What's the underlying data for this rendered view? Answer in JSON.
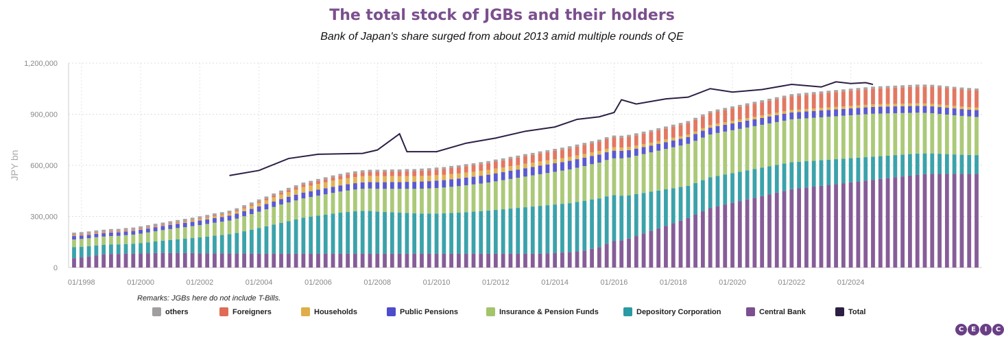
{
  "chart_data": {
    "type": "bar",
    "stacked": true,
    "title": "The total stock of JGBs and their holders",
    "subtitle": "Bank of Japan's share surged from about 2013 amid multiple rounds of QE",
    "ylabel": "JPY bn",
    "ylim": [
      0,
      1200000
    ],
    "yticks": [
      "0",
      "300,000",
      "600,000",
      "900,000",
      "1,200,000"
    ],
    "x_tick_labels": [
      "01/1998",
      "01/2000",
      "01/2002",
      "01/2004",
      "01/2006",
      "01/2008",
      "01/2010",
      "01/2012",
      "01/2014",
      "01/2016",
      "01/2018",
      "01/2020",
      "01/2022",
      "01/2024"
    ],
    "grid": true,
    "legend_position": "bottom",
    "period_start": "1997-Q4",
    "frequency": "quarterly",
    "series_colors": {
      "Central Bank": "#7c4f8f",
      "Depository Corporation": "#2a9aa3",
      "Insurance & Pension Funds": "#a4c46c",
      "Public Pensions": "#4c4ccc",
      "Households": "#dfae48",
      "Foreigners": "#e06c55",
      "others": "#a09e9e",
      "Total": "#2c1f44"
    },
    "series": [
      {
        "name": "Central Bank",
        "values": [
          55000,
          60000,
          65000,
          72000,
          78000,
          80000,
          80000,
          82000,
          82000,
          83000,
          84000,
          85000,
          86000,
          86000,
          86000,
          85000,
          85000,
          84000,
          84000,
          84000,
          83000,
          83000,
          83000,
          83000,
          82000,
          82000,
          82000,
          82000,
          82000,
          82000,
          82000,
          82000,
          82000,
          82000,
          82000,
          82000,
          82000,
          82000,
          82000,
          82000,
          82000,
          82000,
          82000,
          82000,
          82000,
          82000,
          82000,
          82000,
          82000,
          82000,
          82000,
          82000,
          82000,
          82000,
          82000,
          82000,
          82000,
          82000,
          82000,
          82000,
          82000,
          82000,
          82000,
          82000,
          84000,
          86000,
          88000,
          90000,
          95000,
          100000,
          110000,
          120000,
          140000,
          155000,
          160000,
          170000,
          185000,
          200000,
          215000,
          230000,
          245000,
          260000,
          275000,
          290000,
          310000,
          330000,
          350000,
          360000,
          370000,
          380000,
          390000,
          400000,
          410000,
          420000,
          430000,
          440000,
          450000,
          460000,
          465000,
          470000,
          475000,
          480000,
          485000,
          490000,
          495000,
          500000,
          505000,
          510000,
          515000,
          520000,
          525000,
          530000,
          535000,
          540000,
          545000,
          548000,
          550000,
          550000,
          550000,
          550000,
          550000,
          550000,
          550000
        ]
      },
      {
        "name": "Depository Corporation",
        "values": [
          65000,
          62000,
          60000,
          58000,
          55000,
          55000,
          55000,
          56000,
          57000,
          60000,
          64000,
          68000,
          72000,
          76000,
          80000,
          84000,
          88000,
          93000,
          98000,
          103000,
          108000,
          113000,
          120000,
          130000,
          140000,
          150000,
          160000,
          170000,
          180000,
          190000,
          200000,
          210000,
          216000,
          222000,
          228000,
          234000,
          240000,
          244000,
          248000,
          250000,
          250000,
          246000,
          244000,
          242000,
          240000,
          238000,
          236000,
          235000,
          235000,
          235000,
          236000,
          238000,
          240000,
          243000,
          246000,
          249000,
          252000,
          256000,
          260000,
          264000,
          268000,
          272000,
          276000,
          280000,
          282000,
          284000,
          286000,
          288000,
          290000,
          292000,
          290000,
          286000,
          278000,
          270000,
          262000,
          254000,
          246000,
          238000,
          230000,
          222000,
          214000,
          206000,
          198000,
          190000,
          186000,
          183000,
          180000,
          178000,
          176000,
          174000,
          172000,
          170000,
          168000,
          166000,
          164000,
          162000,
          160000,
          158000,
          156000,
          154000,
          152000,
          150000,
          148000,
          146000,
          144000,
          142000,
          140000,
          138000,
          136000,
          134000,
          132000,
          130000,
          128000,
          126000,
          124000,
          122000,
          120000,
          118000,
          116000,
          114000,
          112000,
          111000,
          110000
        ]
      },
      {
        "name": "Insurance & Pension Funds",
        "values": [
          45000,
          46000,
          47000,
          48000,
          49000,
          50000,
          51000,
          52000,
          54000,
          56000,
          58000,
          60000,
          62000,
          64000,
          66000,
          68000,
          70000,
          72000,
          74000,
          76000,
          78000,
          80000,
          84000,
          88000,
          92000,
          96000,
          100000,
          104000,
          108000,
          110000,
          112000,
          114000,
          116000,
          118000,
          120000,
          122000,
          124000,
          126000,
          128000,
          130000,
          132000,
          134000,
          136000,
          138000,
          140000,
          142000,
          144000,
          146000,
          148000,
          150000,
          152000,
          154000,
          156000,
          158000,
          160000,
          162000,
          165000,
          168000,
          171000,
          174000,
          177000,
          180000,
          183000,
          186000,
          189000,
          192000,
          195000,
          198000,
          201000,
          204000,
          207000,
          210000,
          213000,
          216000,
          219000,
          222000,
          225000,
          228000,
          231000,
          234000,
          237000,
          240000,
          243000,
          246000,
          248000,
          250000,
          251000,
          252000,
          252000,
          252000,
          252000,
          252000,
          252000,
          252000,
          252000,
          252000,
          252000,
          252000,
          252000,
          252000,
          252000,
          252000,
          252000,
          252000,
          252000,
          252000,
          252000,
          252000,
          252000,
          250000,
          248000,
          246000,
          244000,
          242000,
          240000,
          238000,
          236000,
          234000,
          232000,
          230000,
          228000,
          226000,
          224000
        ]
      },
      {
        "name": "Public Pensions",
        "values": [
          20000,
          20000,
          20000,
          20000,
          20000,
          21000,
          21000,
          22000,
          22000,
          23000,
          23000,
          24000,
          24000,
          25000,
          25000,
          26000,
          26000,
          27000,
          27000,
          28000,
          28000,
          29000,
          29000,
          30000,
          30000,
          31000,
          31000,
          32000,
          32000,
          33000,
          33000,
          34000,
          34000,
          35000,
          35000,
          36000,
          36000,
          37000,
          37000,
          38000,
          38000,
          39000,
          39000,
          40000,
          40000,
          41000,
          41000,
          42000,
          42000,
          43000,
          43000,
          44000,
          44000,
          45000,
          45000,
          46000,
          46000,
          47000,
          47000,
          48000,
          48000,
          49000,
          49000,
          50000,
          50000,
          50000,
          50000,
          50000,
          50000,
          49000,
          48000,
          47000,
          46000,
          45000,
          44000,
          43000,
          42000,
          41000,
          40000,
          40000,
          40000,
          40000,
          40000,
          40000,
          40000,
          40000,
          40000,
          40000,
          40000,
          40000,
          40000,
          40000,
          40000,
          40000,
          40000,
          40000,
          40000,
          40000,
          40000,
          40000,
          40000,
          40000,
          40000,
          40000,
          40000,
          40000,
          40000,
          40000,
          40000,
          40000,
          40000,
          40000,
          40000,
          40000,
          40000,
          40000,
          40000,
          40000,
          40000,
          40000,
          40000,
          40000,
          40000
        ]
      },
      {
        "name": "Households",
        "values": [
          3000,
          3000,
          3000,
          3000,
          3000,
          3000,
          3000,
          3000,
          3000,
          3000,
          3000,
          3000,
          3000,
          4000,
          5000,
          6000,
          7000,
          8000,
          9000,
          10000,
          11000,
          12000,
          14000,
          16000,
          18000,
          20000,
          22000,
          24000,
          26000,
          28000,
          30000,
          32000,
          33000,
          34000,
          35000,
          36000,
          36000,
          36000,
          36000,
          36000,
          36000,
          36000,
          35000,
          35000,
          34000,
          34000,
          33000,
          33000,
          32000,
          32000,
          31000,
          31000,
          30000,
          30000,
          29000,
          29000,
          28000,
          28000,
          27000,
          27000,
          26000,
          26000,
          25000,
          25000,
          24000,
          24000,
          23000,
          23000,
          22000,
          22000,
          21000,
          21000,
          20000,
          20000,
          19000,
          19000,
          18000,
          18000,
          17000,
          17000,
          16000,
          16000,
          15000,
          15000,
          15000,
          15000,
          15000,
          15000,
          15000,
          15000,
          15000,
          15000,
          15000,
          15000,
          15000,
          15000,
          15000,
          15000,
          15000,
          15000,
          15000,
          15000,
          15000,
          15000,
          15000,
          15000,
          15000,
          15000,
          15000,
          15000,
          15000,
          15000,
          15000,
          15000,
          15000,
          15000,
          15000,
          15000,
          15000,
          15000,
          15000,
          15000,
          15000
        ]
      },
      {
        "name": "Foreigners",
        "values": [
          5000,
          5000,
          5000,
          5000,
          5000,
          5000,
          5000,
          5000,
          5000,
          5000,
          5000,
          5000,
          5000,
          5000,
          5000,
          5000,
          5000,
          5000,
          5000,
          5000,
          5000,
          5000,
          6000,
          7000,
          8000,
          9000,
          10000,
          11000,
          12000,
          13000,
          14000,
          15000,
          16000,
          17000,
          18000,
          19000,
          20000,
          21000,
          22000,
          23000,
          24000,
          25000,
          26000,
          27000,
          28000,
          29000,
          30000,
          31000,
          32000,
          33000,
          34000,
          35000,
          36000,
          37000,
          38000,
          39000,
          40000,
          41000,
          42000,
          43000,
          44000,
          45000,
          46000,
          47000,
          48000,
          49000,
          50000,
          51000,
          52000,
          53000,
          54000,
          55000,
          56000,
          57000,
          58000,
          59000,
          60000,
          61000,
          62000,
          63000,
          64000,
          65000,
          66000,
          67000,
          68000,
          69000,
          70000,
          71000,
          72000,
          73000,
          74000,
          75000,
          76000,
          77000,
          78000,
          79000,
          80000,
          81000,
          82000,
          83000,
          84000,
          85000,
          86000,
          87000,
          88000,
          89000,
          90000,
          91000,
          92000,
          93000,
          94000,
          95000,
          96000,
          97000,
          98000,
          99000,
          100000,
          100000,
          100000,
          100000,
          100000,
          100000,
          100000
        ]
      },
      {
        "name": "others",
        "values": [
          12000,
          12000,
          12000,
          12000,
          12000,
          12000,
          12000,
          12000,
          12000,
          12000,
          12000,
          12000,
          12000,
          12000,
          12000,
          12000,
          12000,
          12000,
          12000,
          12000,
          12000,
          12000,
          12000,
          12000,
          12000,
          12000,
          12000,
          12000,
          12000,
          12000,
          12000,
          12000,
          12000,
          12000,
          12000,
          12000,
          12000,
          12000,
          12000,
          12000,
          12000,
          12000,
          12000,
          12000,
          12000,
          12000,
          12000,
          12000,
          12000,
          12000,
          12000,
          12000,
          12000,
          12000,
          12000,
          12000,
          12000,
          12000,
          12000,
          12000,
          12000,
          12000,
          12000,
          12000,
          12000,
          12000,
          12000,
          12000,
          12000,
          12000,
          12000,
          12000,
          12000,
          12000,
          12000,
          12000,
          12000,
          12000,
          12000,
          12000,
          12000,
          12000,
          12000,
          12000,
          12000,
          12000,
          12000,
          12000,
          12000,
          12000,
          12000,
          12000,
          12000,
          12000,
          12000,
          12000,
          12000,
          12000,
          12000,
          12000,
          12000,
          12000,
          12000,
          12000,
          12000,
          12000,
          12000,
          12000,
          12000,
          12000,
          12000,
          12000,
          12000,
          12000,
          12000,
          12000,
          12000,
          12000,
          12000,
          12000,
          12000,
          12000,
          12000
        ]
      },
      {
        "name": "Total",
        "x": [
          "2003-Q1",
          "2004-Q1",
          "2005-Q1",
          "2006-Q1",
          "2007-Q3",
          "2008-Q1",
          "2008-Q4",
          "2009-Q1",
          "2010-Q1",
          "2011-Q1",
          "2012-Q1",
          "2013-Q1",
          "2014-Q1",
          "2014-Q4",
          "2015-Q3",
          "2016-Q1",
          "2016-Q2",
          "2016-Q4",
          "2017-Q4",
          "2018-Q3",
          "2019-Q2",
          "2020-Q1",
          "2021-Q1",
          "2022-Q1",
          "2023-Q1",
          "2023-Q3",
          "2024-Q1",
          "2024-Q3",
          "2024-Q4"
        ],
        "values": [
          540000,
          570000,
          640000,
          665000,
          670000,
          690000,
          785000,
          680000,
          680000,
          730000,
          760000,
          800000,
          825000,
          870000,
          885000,
          910000,
          985000,
          960000,
          990000,
          1000000,
          1050000,
          1030000,
          1045000,
          1075000,
          1060000,
          1090000,
          1080000,
          1085000,
          1075000
        ]
      }
    ]
  },
  "remarks": "Remarks: JGBs here do not include T-Bills.",
  "legend": [
    {
      "label": "others",
      "color": "#a09e9e"
    },
    {
      "label": "Foreigners",
      "color": "#e06c55"
    },
    {
      "label": "Households",
      "color": "#dfae48"
    },
    {
      "label": "Public Pensions",
      "color": "#4c4ccc"
    },
    {
      "label": "Insurance & Pension Funds",
      "color": "#a4c46c"
    },
    {
      "label": "Depository Corporation",
      "color": "#2a9aa3"
    },
    {
      "label": "Central Bank",
      "color": "#7c4f8f"
    },
    {
      "label": "Total",
      "color": "#2c1f44"
    }
  ],
  "logo": {
    "letters": [
      "C",
      "E",
      "I",
      "C"
    ]
  }
}
